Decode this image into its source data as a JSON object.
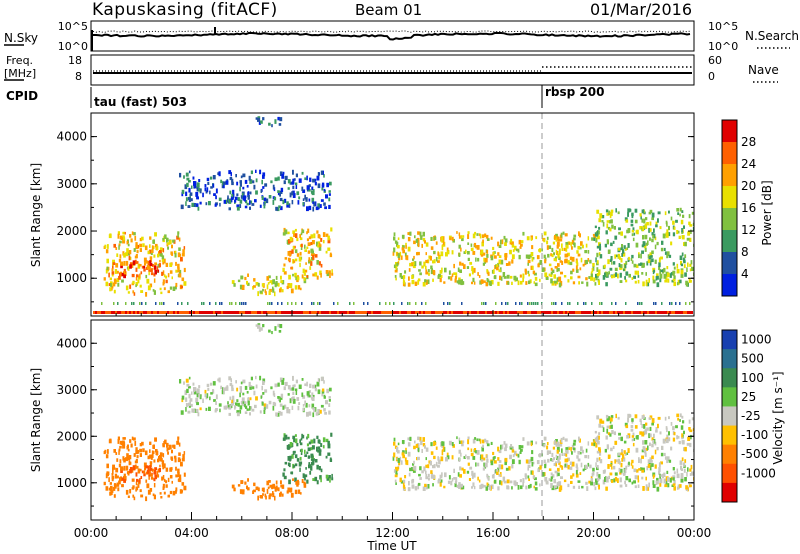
{
  "header": {
    "station": "Kapuskasing (fitACF)",
    "beam": "Beam 01",
    "date": "01/Mar/2016"
  },
  "panels": {
    "noise": {
      "left_label": "N.Sky",
      "right_label": "N.Search",
      "left_ticks": [
        "10^5",
        "10^0"
      ],
      "right_ticks": [
        "10^5",
        "10^0"
      ]
    },
    "freq": {
      "left_label_1": "Freq.",
      "left_label_2": "[MHz]",
      "right_label": "Nave",
      "left_ticks": [
        "18",
        "8"
      ],
      "right_ticks": [
        "60",
        "0"
      ]
    },
    "cpid": {
      "label": "CPID",
      "segments": [
        "tau (fast) 503",
        "rbsp 200"
      ]
    }
  },
  "power_panel": {
    "ylabel": "Slant Range [km]",
    "colorbar_label": "Power [dB]",
    "colorbar_ticks": [
      "28",
      "24",
      "20",
      "16",
      "12",
      "8",
      "4"
    ],
    "colorbar_colors": [
      "#e00000",
      "#ff6000",
      "#ffa000",
      "#e8e000",
      "#80c040",
      "#3a9a60",
      "#2050a0",
      "#0020e0"
    ]
  },
  "velocity_panel": {
    "ylabel": "Slant Range [km]",
    "colorbar_label": "Velocity [m s⁻¹]",
    "colorbar_ticks": [
      "1000",
      "500",
      "100",
      "25",
      "-25",
      "-100",
      "-500",
      "-1000"
    ],
    "colorbar_colors": [
      "#1840b0",
      "#2a7090",
      "#3a8a50",
      "#60c040",
      "#c8c8c0",
      "#ffc000",
      "#ff8000",
      "#ff5000",
      "#e00000"
    ]
  },
  "xaxis": {
    "label": "Time UT",
    "ticks": [
      "00:00",
      "04:00",
      "08:00",
      "12:00",
      "16:00",
      "20:00",
      "00:00"
    ]
  },
  "chart_data": {
    "type": "heatmap",
    "title": "Kapuskasing (fitACF)   Beam 01   01/Mar/2016",
    "xlabel": "Time UT",
    "ylabel": "Slant Range [km]",
    "x_ticks": [
      "00:00",
      "04:00",
      "08:00",
      "12:00",
      "16:00",
      "20:00",
      "00:00"
    ],
    "y_ticks": [
      1000,
      2000,
      3000,
      4000
    ],
    "ylim": [
      200,
      4500
    ],
    "cpid_change_time": "18:00",
    "power_scale": {
      "label": "Power [dB]",
      "ticks": [
        4,
        8,
        12,
        16,
        20,
        24,
        28
      ]
    },
    "velocity_scale": {
      "label": "Velocity [m s⁻¹]",
      "ticks": [
        -1000,
        -500,
        -100,
        -25,
        25,
        100,
        500,
        1000
      ]
    },
    "scatter_regions": [
      {
        "time": [
          0.5,
          3.7
        ],
        "range": [
          700,
          2000
        ],
        "power_db": 20,
        "velocity": -400
      },
      {
        "time": [
          1.0,
          2.8
        ],
        "range": [
          1050,
          1400
        ],
        "power_db": 26,
        "velocity": -500
      },
      {
        "time": [
          3.5,
          9.5
        ],
        "range": [
          2500,
          3300
        ],
        "power_db": 6,
        "velocity": 25
      },
      {
        "time": [
          6.4,
          7.5
        ],
        "range": [
          4250,
          4450
        ],
        "power_db": 8,
        "velocity": 25
      },
      {
        "time": [
          7.6,
          9.6
        ],
        "range": [
          1050,
          2100
        ],
        "power_db": 20,
        "velocity": 150
      },
      {
        "time": [
          5.6,
          8.5
        ],
        "range": [
          700,
          1100
        ],
        "power_db": 18,
        "velocity": -200
      },
      {
        "time": [
          12.0,
          20.0
        ],
        "range": [
          900,
          2000
        ],
        "power_db": 18,
        "velocity": 0
      },
      {
        "time": [
          20.0,
          24.0
        ],
        "range": [
          900,
          2500
        ],
        "power_db": 14,
        "velocity": 0
      }
    ]
  }
}
